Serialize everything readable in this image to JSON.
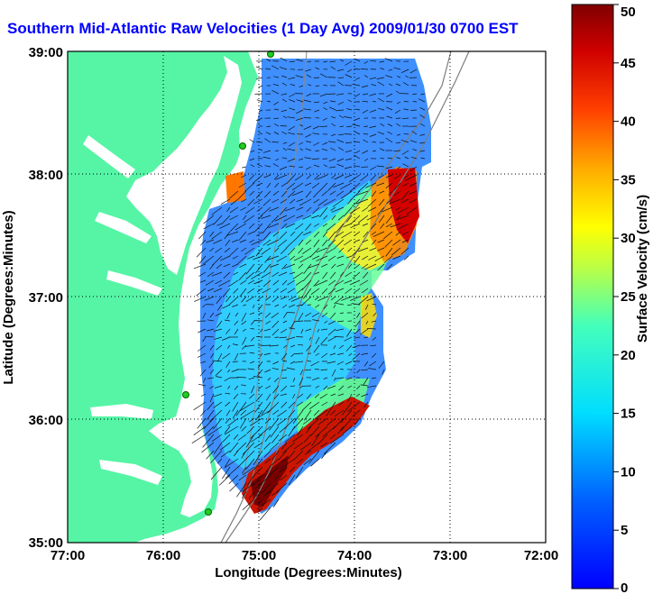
{
  "title": "Southern Mid-Atlantic Raw Velocities (1 Day Avg) 2009/01/30 0700 EST",
  "chart_data": {
    "type": "heatmap",
    "title": "Southern Mid-Atlantic Raw Velocities (1 Day Avg) 2009/01/30 0700 EST",
    "xlabel": "Longitude (Degrees:Minutes)",
    "ylabel": "Latitude (Degrees:Minutes)",
    "xlim": [
      -77,
      -72
    ],
    "ylim": [
      35,
      39
    ],
    "x_ticks": [
      "77:00",
      "76:00",
      "75:00",
      "74:00",
      "73:00",
      "72:00"
    ],
    "y_ticks": [
      "39:00",
      "38:00",
      "37:00",
      "36:00",
      "35:00"
    ],
    "grid": true,
    "colorbar": {
      "label": "Surface Velocity (cm/s)",
      "range": [
        0,
        50
      ],
      "ticks": [
        "50",
        "45",
        "40",
        "35",
        "30",
        "25",
        "20",
        "15",
        "10",
        "5",
        "0"
      ]
    },
    "colors": {
      "land": "#55f5a5",
      "water": "#ffffff",
      "title": "#0000ff"
    }
  }
}
